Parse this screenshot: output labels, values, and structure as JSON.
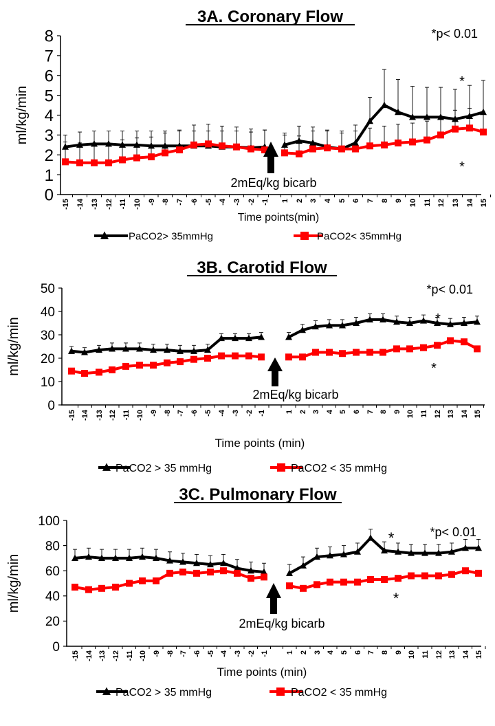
{
  "chart_data": [
    {
      "type": "line",
      "title": "3A. Coronary Flow",
      "ylabel": "ml/kg/min",
      "xlabel": "Time points(min)",
      "ylim": [
        0,
        8
      ],
      "yticks": [
        0,
        1,
        2,
        3,
        4,
        5,
        6,
        7,
        8
      ],
      "x": [
        "-15",
        "-14",
        "-13",
        "-12",
        "-11",
        "-10",
        "-9",
        "-8",
        "-7",
        "-6",
        "-5",
        "-4",
        "-3",
        "-2",
        "-1",
        "1",
        "2",
        "3",
        "4",
        "5",
        "6",
        "7",
        "8",
        "9",
        "10",
        "11",
        "12",
        "13",
        "14",
        "15"
      ],
      "annotation_sig": "*p< 0.01",
      "annotation_arrow": "2mEq/kg bicarb",
      "legend_position": "bottom",
      "series": [
        {
          "name": "PaCO2> 35mmHg",
          "color": "#000000",
          "marker": "triangle",
          "values": [
            2.4,
            2.5,
            2.55,
            2.55,
            2.5,
            2.5,
            2.45,
            2.45,
            2.45,
            2.45,
            2.45,
            2.4,
            2.4,
            2.35,
            2.4,
            2.5,
            2.7,
            2.6,
            2.4,
            2.3,
            2.6,
            3.7,
            4.5,
            4.15,
            3.9,
            3.9,
            3.9,
            3.8,
            3.95,
            4.15
          ],
          "errors": [
            0.6,
            0.65,
            0.65,
            0.65,
            0.7,
            0.7,
            0.75,
            0.75,
            0.75,
            0.75,
            0.75,
            0.8,
            0.8,
            0.8,
            0.85,
            0.6,
            0.75,
            0.8,
            0.8,
            0.8,
            0.9,
            1.2,
            1.8,
            1.65,
            1.55,
            1.5,
            1.5,
            1.5,
            1.55,
            1.6
          ],
          "stars": [
            "14"
          ]
        },
        {
          "name": "PaCO2< 35mmHg",
          "color": "#ff0000",
          "marker": "square",
          "values": [
            1.65,
            1.6,
            1.6,
            1.6,
            1.75,
            1.85,
            1.9,
            2.1,
            2.25,
            2.5,
            2.55,
            2.45,
            2.4,
            2.3,
            2.25,
            2.1,
            2.05,
            2.3,
            2.35,
            2.3,
            2.3,
            2.45,
            2.5,
            2.6,
            2.65,
            2.75,
            3.0,
            3.3,
            3.35,
            3.15
          ],
          "errors": [
            1.0,
            1.0,
            1.0,
            1.0,
            1.0,
            1.0,
            1.0,
            1.0,
            1.0,
            1.0,
            1.0,
            1.0,
            1.0,
            1.0,
            1.0,
            0.9,
            0.9,
            0.9,
            0.9,
            0.9,
            0.9,
            0.9,
            0.95,
            0.95,
            0.95,
            0.95,
            0.95,
            0.95,
            1.0,
            1.0
          ],
          "stars": [
            "14"
          ]
        }
      ]
    },
    {
      "type": "line",
      "title": "3B. Carotid Flow",
      "ylabel": "ml/kg/min",
      "xlabel": "Time points (min)",
      "ylim": [
        0,
        50
      ],
      "yticks": [
        0,
        10,
        20,
        30,
        40,
        50
      ],
      "x": [
        "-15",
        "-14",
        "-13",
        "-12",
        "-11",
        "-10",
        "-9",
        "-8",
        "-7",
        "-6",
        "-5",
        "-4",
        "-3",
        "-2",
        "-1",
        "1",
        "2",
        "3",
        "4",
        "5",
        "6",
        "7",
        "8",
        "9",
        "10",
        "11",
        "12",
        "13",
        "14",
        "15"
      ],
      "annotation_sig": "*p< 0.01",
      "annotation_arrow": "2mEq/kg bicarb",
      "legend_position": "bottom",
      "series": [
        {
          "name": "PaCO2 > 35 mmHg",
          "color": "#000000",
          "marker": "triangle",
          "values": [
            23,
            22.5,
            23.5,
            24,
            24,
            24,
            23.5,
            23.5,
            23,
            23,
            23.5,
            28.5,
            28.5,
            28.5,
            29,
            29,
            32,
            33.5,
            34,
            34,
            35,
            36.5,
            36.5,
            35.5,
            35,
            36,
            35,
            34.5,
            35,
            35.5
          ],
          "errors": [
            2,
            2,
            2,
            2.5,
            2.5,
            2.5,
            2.5,
            2.5,
            2.5,
            2.5,
            2.5,
            2,
            2,
            2,
            2,
            2,
            2.5,
            2.5,
            2.5,
            2.5,
            2.5,
            2.5,
            2.5,
            2.5,
            2.5,
            2.5,
            2.5,
            2.5,
            2.5,
            2.5
          ],
          "stars": [
            "12"
          ]
        },
        {
          "name": "PaCO2 < 35 mmHg",
          "color": "#ff0000",
          "marker": "square",
          "values": [
            14.5,
            13.5,
            14,
            15,
            16.5,
            17,
            17,
            18,
            18.5,
            19.5,
            20,
            21,
            21,
            21,
            20.5,
            20.5,
            20.5,
            22.5,
            22.5,
            22,
            22.5,
            22.5,
            22.5,
            24,
            24,
            24.5,
            25.5,
            27.5,
            27,
            24
          ],
          "errors": [],
          "stars": [
            "12"
          ]
        }
      ]
    },
    {
      "type": "line",
      "title": "3C. Pulmonary Flow",
      "ylabel": "ml/kg/min",
      "xlabel": "Time points (min)",
      "ylim": [
        0,
        100
      ],
      "yticks": [
        0,
        20,
        40,
        60,
        80,
        100
      ],
      "x": [
        "-15",
        "-14",
        "-13",
        "-12",
        "-11",
        "-10",
        "-9",
        "-8",
        "-7",
        "-6",
        "-5",
        "-4",
        "-3",
        "-2",
        "-1",
        "1",
        "2",
        "3",
        "4",
        "5",
        "6",
        "7",
        "8",
        "9",
        "10",
        "11",
        "12",
        "13",
        "14",
        "15"
      ],
      "annotation_sig": "*p< 0.01",
      "annotation_arrow": "2mEq/kg bicarb",
      "legend_position": "bottom",
      "series": [
        {
          "name": "PaCO2 > 35 mmHg",
          "color": "#000000",
          "marker": "triangle",
          "values": [
            70,
            71,
            70,
            70,
            70,
            71,
            70,
            68,
            67,
            66,
            65,
            66,
            62,
            60,
            59,
            58,
            64,
            71,
            72,
            73,
            75,
            86,
            76,
            75,
            74,
            74,
            74,
            75,
            78,
            78
          ],
          "errors": [
            7,
            7,
            7,
            7,
            7,
            7,
            7,
            7,
            7,
            7,
            7,
            7,
            7,
            7,
            7,
            7,
            7,
            7,
            7,
            7,
            7,
            7,
            7,
            7,
            7,
            7,
            7,
            7,
            7,
            7
          ],
          "stars": [
            "8"
          ]
        },
        {
          "name": "PaCO2 < 35 mmHg",
          "color": "#ff0000",
          "marker": "square",
          "values": [
            47,
            45,
            46,
            47,
            50,
            52,
            52,
            58,
            59,
            58,
            59,
            60,
            58,
            54,
            55,
            48,
            46,
            49,
            51,
            51,
            51,
            53,
            53,
            54,
            56,
            56,
            56,
            57,
            60,
            58
          ],
          "errors": [],
          "stars": [
            "9"
          ]
        }
      ]
    }
  ]
}
